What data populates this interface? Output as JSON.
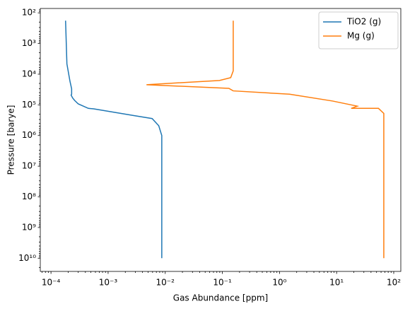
{
  "chart_data": {
    "type": "line",
    "xlabel": "Gas Abundance [ppm]",
    "ylabel": "Pressure [barye]",
    "xscale": "log",
    "yscale": "log",
    "yinverted": true,
    "legend": "upper right",
    "xlim": [
      6.5e-05,
      133
    ],
    "ylim": [
      27000000000.0,
      72
    ],
    "xticks": [
      {
        "value": 0.0001,
        "label": "10⁻⁴"
      },
      {
        "value": 0.001,
        "label": "10⁻³"
      },
      {
        "value": 0.01,
        "label": "10⁻²"
      },
      {
        "value": 0.1,
        "label": "10⁻¹"
      },
      {
        "value": 1,
        "label": "10⁰"
      },
      {
        "value": 10,
        "label": "10¹"
      },
      {
        "value": 100,
        "label": "10²"
      }
    ],
    "yticks": [
      {
        "value": 100,
        "label": "10²"
      },
      {
        "value": 1000,
        "label": "10³"
      },
      {
        "value": 10000,
        "label": "10⁴"
      },
      {
        "value": 100000,
        "label": "10⁵"
      },
      {
        "value": 1000000,
        "label": "10⁶"
      },
      {
        "value": 10000000,
        "label": "10⁷"
      },
      {
        "value": 100000000,
        "label": "10⁸"
      },
      {
        "value": 1000000000,
        "label": "10⁹"
      },
      {
        "value": 10000000000,
        "label": "10¹⁰"
      }
    ],
    "series": [
      {
        "name": "TiO2 (g)",
        "color": "#1f77b4",
        "x": [
          0.00018,
          0.00019,
          0.000215,
          0.00023,
          0.00023,
          0.000225,
          0.00024,
          0.00026,
          0.0003,
          0.00045,
          0.00056,
          0.0027,
          0.0059,
          0.0077,
          0.0087,
          0.0087
        ],
        "y": [
          180,
          4600,
          17000,
          30000,
          45000,
          48000,
          60000,
          72000,
          93000,
          130000,
          135000,
          220000,
          280000,
          480000,
          1000000,
          10000000000
        ]
      },
      {
        "name": "Mg (g)",
        "color": "#ff7f0e",
        "x": [
          0.155,
          0.155,
          0.14,
          0.089,
          0.0047,
          0.13,
          0.155,
          1.5,
          8.5,
          23,
          18,
          54,
          67,
          67
        ],
        "y": [
          180,
          7800,
          13000,
          16000,
          22000,
          29000,
          35000,
          45000,
          75000,
          110000,
          130000,
          130000,
          190000,
          10000000000
        ]
      }
    ]
  }
}
